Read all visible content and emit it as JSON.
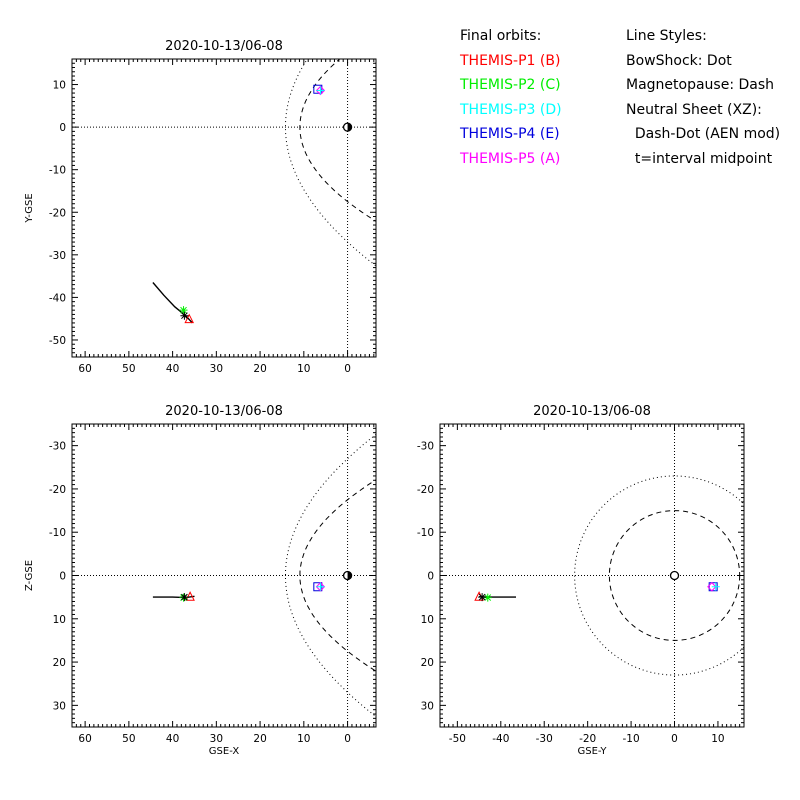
{
  "legend": {
    "title": "Final orbits:",
    "probes": [
      {
        "label": "THEMIS-P1 (B)",
        "color": "#ff0000"
      },
      {
        "label": "THEMIS-P2 (C)",
        "color": "#00ee00"
      },
      {
        "label": "THEMIS-P3 (D)",
        "color": "#00ffff"
      },
      {
        "label": "THEMIS-P4 (E)",
        "color": "#0000dd"
      },
      {
        "label": "THEMIS-P5 (A)",
        "color": "#ff00ff"
      }
    ]
  },
  "line_styles": {
    "title": "Line Styles:",
    "items": [
      "BowShock: Dot",
      "Magnetopause: Dash",
      "Neutral Sheet (XZ):",
      "  Dash-Dot (AEN mod)",
      "  t=interval midpoint"
    ]
  },
  "chart_data": [
    {
      "type": "scatter",
      "title": "2020-10-13/06-08",
      "xlabel": "",
      "ylabel": "Y-GSE",
      "xlim": [
        63,
        -6.5
      ],
      "ylim": [
        16,
        -54
      ],
      "xticks": [
        60,
        50,
        40,
        30,
        20,
        10,
        0
      ],
      "yticks": [
        -50,
        -40,
        -30,
        -20,
        -10,
        0,
        10
      ],
      "earth": [
        0,
        0
      ],
      "bowshock": {
        "standoff": 14.2,
        "semi_latus": 27
      },
      "magnetopause": {
        "standoff": 10.9,
        "semi_latus": 17.5
      },
      "trajectory": [
        [
          44.5,
          -36.5
        ],
        [
          42,
          -39.5
        ],
        [
          39.5,
          -42.2
        ],
        [
          37,
          -44.3
        ],
        [
          35.5,
          -46
        ]
      ],
      "markers": [
        {
          "probe": "P1",
          "symbol": "triangle",
          "color": "#ff0000",
          "x": 36.2,
          "y": -45
        },
        {
          "probe": "P2",
          "symbol": "asterisk",
          "color": "#00ee00",
          "x": 37.5,
          "y": -43
        },
        {
          "probe": "P5",
          "symbol": "asterisk",
          "color": "#000000",
          "x": 37.3,
          "y": -44.3
        },
        {
          "probe": "P3",
          "symbol": "square",
          "color": "#0000dd",
          "x": 6.8,
          "y": 8.9
        },
        {
          "probe": "P4",
          "symbol": "diamond",
          "color": "#ff00ff",
          "x": 6.2,
          "y": 8.6
        },
        {
          "probe": "P3",
          "symbol": "plus",
          "color": "#00ffff",
          "x": 6.2,
          "y": 8.6
        }
      ]
    },
    {
      "type": "scatter",
      "title": "2020-10-13/06-08",
      "xlabel": "GSE-X",
      "ylabel": "Z-GSE",
      "xlim": [
        63,
        -6.5
      ],
      "ylim": [
        -35,
        35
      ],
      "xticks": [
        60,
        50,
        40,
        30,
        20,
        10,
        0
      ],
      "yticks": [
        -30,
        -20,
        -10,
        0,
        10,
        20,
        30
      ],
      "earth": [
        0,
        0
      ],
      "bowshock": {
        "standoff": 14.2,
        "semi_latus": 27
      },
      "magnetopause": {
        "standoff": 10.9,
        "semi_latus": 17.5
      },
      "trajectory": [
        [
          44.5,
          5
        ],
        [
          40,
          5
        ],
        [
          37,
          5.1
        ],
        [
          35,
          4.8
        ]
      ],
      "markers": [
        {
          "probe": "P1",
          "symbol": "triangle",
          "color": "#ff0000",
          "x": 36,
          "y": 4.8
        },
        {
          "probe": "P2",
          "symbol": "asterisk",
          "color": "#00ee00",
          "x": 37.5,
          "y": 5.1
        },
        {
          "probe": "P5",
          "symbol": "asterisk",
          "color": "#000000",
          "x": 37.3,
          "y": 5
        },
        {
          "probe": "P3",
          "symbol": "square",
          "color": "#0000dd",
          "x": 6.8,
          "y": 2.6
        },
        {
          "probe": "P4",
          "symbol": "diamond",
          "color": "#ff00ff",
          "x": 6.2,
          "y": 2.6
        },
        {
          "probe": "P3",
          "symbol": "plus",
          "color": "#00ffff",
          "x": 6.2,
          "y": 2.6
        }
      ]
    },
    {
      "type": "scatter",
      "title": "2020-10-13/06-08",
      "xlabel": "GSE-Y",
      "ylabel": "",
      "xlim": [
        -54,
        16
      ],
      "ylim": [
        -35,
        35
      ],
      "xticks": [
        -50,
        -40,
        -30,
        -20,
        -10,
        0,
        10
      ],
      "yticks": [
        -30,
        -20,
        -10,
        0,
        10,
        20,
        30
      ],
      "earth": [
        0,
        0
      ],
      "bowshock_radius": 23,
      "magnetopause_radius": 15,
      "trajectory": [
        [
          -36.5,
          5
        ],
        [
          -40,
          5
        ],
        [
          -43,
          5
        ],
        [
          -45,
          4.9
        ]
      ],
      "markers": [
        {
          "probe": "P1",
          "symbol": "triangle",
          "color": "#ff0000",
          "x": -45,
          "y": 4.8
        },
        {
          "probe": "P2",
          "symbol": "asterisk",
          "color": "#00ee00",
          "x": -43,
          "y": 5.1
        },
        {
          "probe": "P5",
          "symbol": "asterisk",
          "color": "#000000",
          "x": -44.3,
          "y": 5
        },
        {
          "probe": "P3",
          "symbol": "square",
          "color": "#0000dd",
          "x": 8.9,
          "y": 2.6
        },
        {
          "probe": "P4",
          "symbol": "diamond",
          "color": "#ff00ff",
          "x": 8.6,
          "y": 2.6
        },
        {
          "probe": "P3",
          "symbol": "plus",
          "color": "#00ffff",
          "x": 9.5,
          "y": 2.6
        }
      ]
    }
  ]
}
